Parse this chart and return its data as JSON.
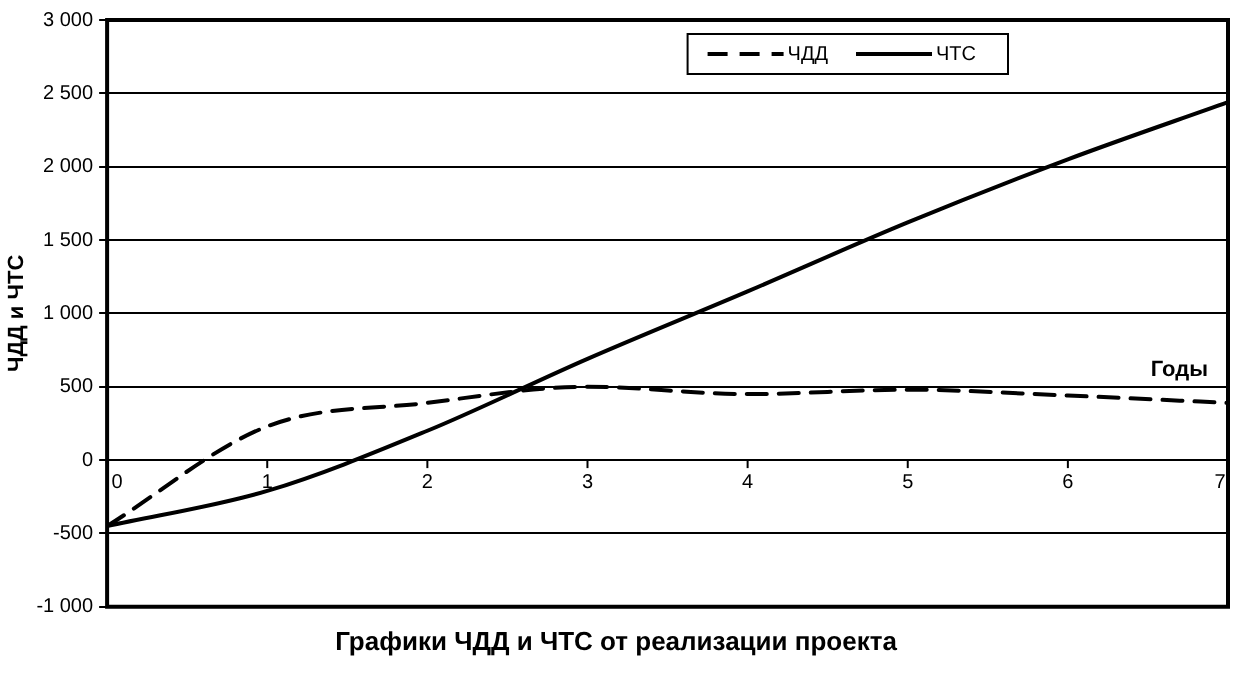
{
  "chart_data": {
    "type": "line",
    "title": "Графики ЧДД и ЧТС от реализации проекта",
    "xlabel": "Годы",
    "ylabel": "ЧДД и ЧТС",
    "x": [
      0,
      1,
      2,
      3,
      4,
      5,
      6,
      7
    ],
    "series": [
      {
        "name": "ЧДД",
        "color": "#000000",
        "line_style": "dashed",
        "values": [
          -450,
          230,
          390,
          500,
          450,
          480,
          440,
          390
        ]
      },
      {
        "name": "ЧТС",
        "color": "#000000",
        "line_style": "solid",
        "values": [
          -450,
          -210,
          200,
          690,
          1150,
          1620,
          2050,
          2440
        ]
      }
    ],
    "xlim": [
      0,
      7
    ],
    "xticks": [
      0,
      1,
      2,
      3,
      4,
      5,
      6,
      7
    ],
    "ylim": [
      -1000,
      3000
    ],
    "yticks": [
      {
        "value": -1000,
        "label": "-1 000"
      },
      -500,
      0,
      500,
      {
        "value": 1000,
        "label": "1 000"
      },
      {
        "value": 1500,
        "label": "1 500"
      },
      {
        "value": 2000,
        "label": "2 000"
      },
      {
        "value": 2500,
        "label": "2 500"
      },
      {
        "value": 3000,
        "label": "3 000"
      }
    ],
    "grid": "y",
    "legend": "top right",
    "marker": "none"
  }
}
